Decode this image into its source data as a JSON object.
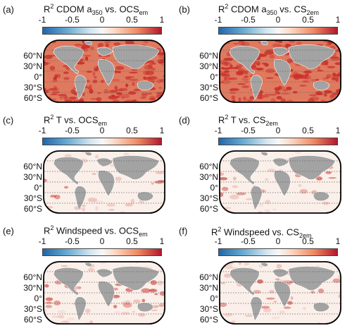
{
  "colorbar": {
    "ticks": [
      "-1",
      "-0.5",
      "0",
      "0.5",
      "1"
    ]
  },
  "latitudes": [
    "60°N",
    "30°N",
    "0°",
    "30°S",
    "60°S"
  ],
  "panels": [
    {
      "label": "(a)",
      "r": "R",
      "sup": "2",
      "pre": " CDOM a",
      "sub1": "350",
      "mid": " vs. OCS",
      "sub2": "em",
      "intensity": "strong"
    },
    {
      "label": "(b)",
      "r": "R",
      "sup": "2",
      "pre": " CDOM a",
      "sub1": "350",
      "mid": " vs. CS",
      "sub2": "2em",
      "intensity": "strong"
    },
    {
      "label": "(c)",
      "r": "R",
      "sup": "2",
      "pre": " T vs. OCS",
      "sub1": "em",
      "mid": "",
      "sub2": "",
      "intensity": "weak"
    },
    {
      "label": "(d)",
      "r": "R",
      "sup": "2",
      "pre": " T vs. CS",
      "sub1": "2em",
      "mid": "",
      "sub2": "",
      "intensity": "weak"
    },
    {
      "label": "(e)",
      "r": "R",
      "sup": "2",
      "pre": " Windspeed vs. OCS",
      "sub1": "em",
      "mid": "",
      "sub2": "",
      "intensity": "moderate"
    },
    {
      "label": "(f)",
      "r": "R",
      "sup": "2",
      "pre": " Windspeed vs. CS",
      "sub1": "2em",
      "mid": "",
      "sub2": "",
      "intensity": "moderate"
    }
  ],
  "colors": {
    "land": "#a3a3a3",
    "ocean_low": "#fbefe9",
    "ocean_high": "#c8302a",
    "grid": "#666666"
  }
}
